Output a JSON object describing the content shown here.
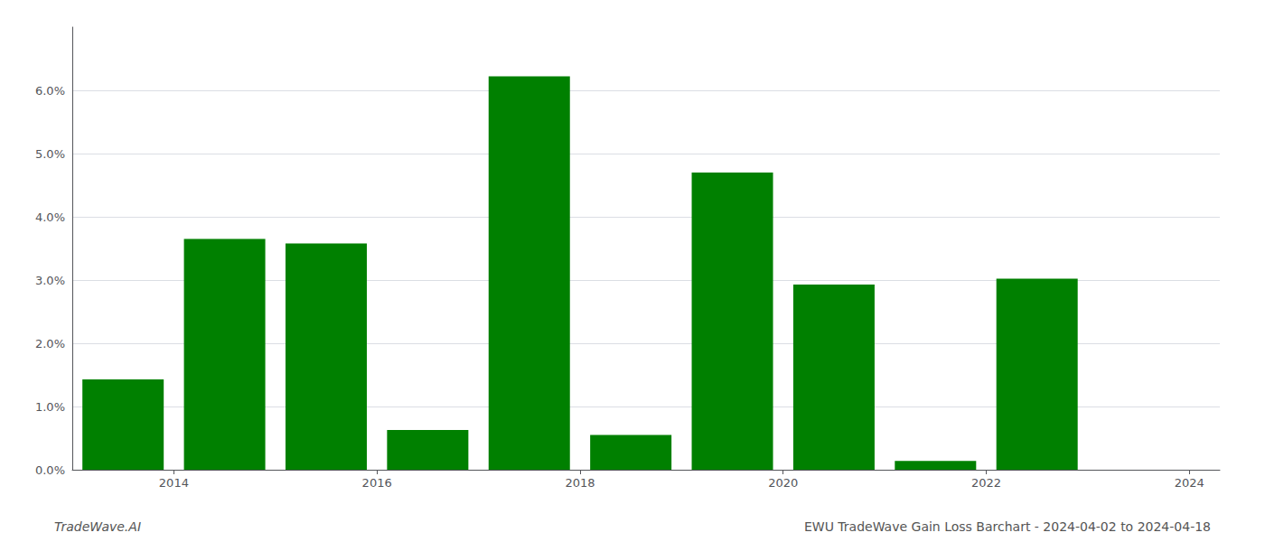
{
  "chart_data": {
    "type": "bar",
    "x": [
      2014,
      2015,
      2016,
      2017,
      2018,
      2019,
      2020,
      2021,
      2022,
      2023,
      2024
    ],
    "values": [
      0.0143,
      0.0365,
      0.0358,
      0.0063,
      0.0622,
      0.0055,
      0.047,
      0.0293,
      0.0014,
      0.0302,
      0.0
    ],
    "color": "#008000",
    "xlim": [
      2013.5,
      2024.8
    ],
    "xticks": [
      {
        "value": 2014.5,
        "label": "2014"
      },
      {
        "value": 2016.5,
        "label": "2016"
      },
      {
        "value": 2018.5,
        "label": "2018"
      },
      {
        "value": 2020.5,
        "label": "2020"
      },
      {
        "value": 2022.5,
        "label": "2022"
      },
      {
        "value": 2024.5,
        "label": "2024"
      }
    ],
    "ylim": [
      0,
      0.07
    ],
    "yticks": [
      {
        "value": 0.0,
        "label": "0.0%"
      },
      {
        "value": 0.01,
        "label": "1.0%"
      },
      {
        "value": 0.02,
        "label": "2.0%"
      },
      {
        "value": 0.03,
        "label": "3.0%"
      },
      {
        "value": 0.04,
        "label": "4.0%"
      },
      {
        "value": 0.05,
        "label": "5.0%"
      },
      {
        "value": 0.06,
        "label": "6.0%"
      }
    ],
    "grid": true,
    "annotations": [
      "TradeWave.AI",
      "EWU TradeWave Gain Loss Barchart - 2024-04-02 to 2024-04-18"
    ]
  }
}
